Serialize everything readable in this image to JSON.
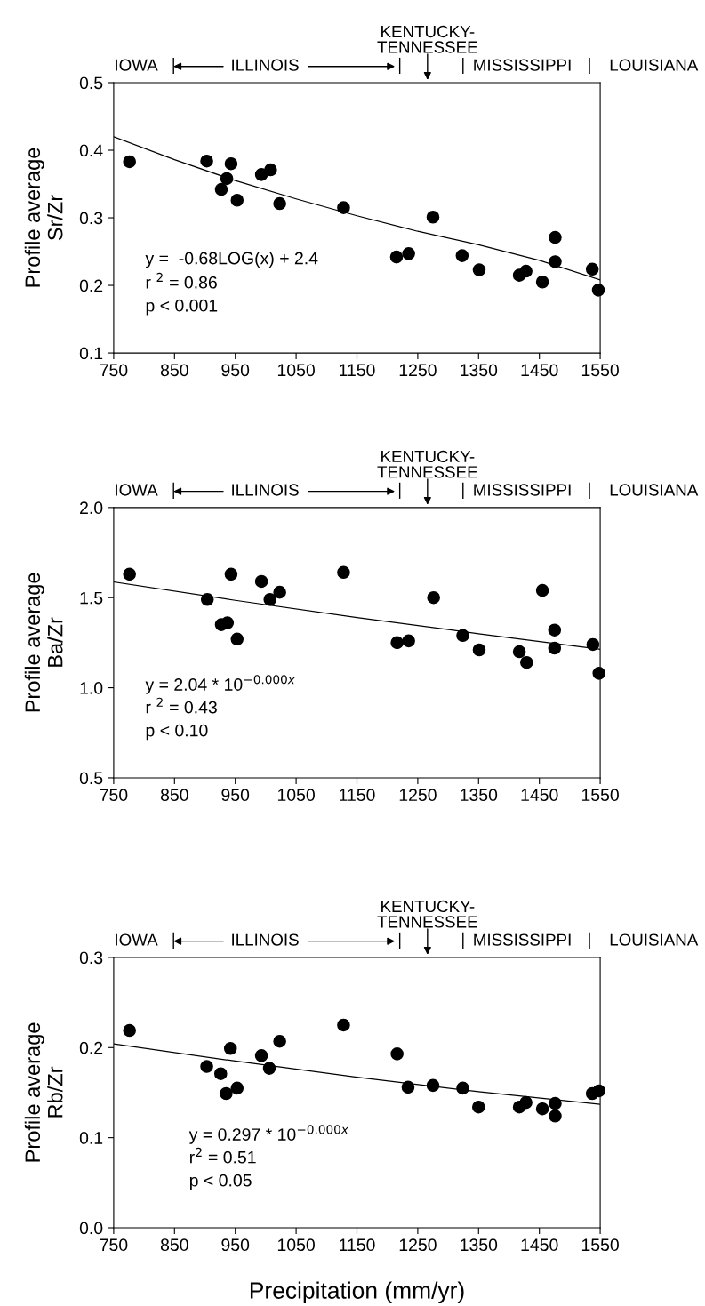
{
  "chart_data": [
    {
      "type": "scatter",
      "ylabel": "Profile average\nSr/Zr",
      "xlim": [
        750,
        1550
      ],
      "xticks": [
        750,
        850,
        950,
        1050,
        1150,
        1250,
        1350,
        1450,
        1550
      ],
      "ylim": [
        0.1,
        0.5
      ],
      "yticks": [
        0.1,
        0.2,
        0.3,
        0.4,
        0.5
      ],
      "annotations": [
        "IOWA",
        "ILLINOIS",
        "KENTUCKY-\nTENNESSEE",
        "MISSISSIPPI",
        "LOUISIANA",
        "y =  -0.68LOG(x) + 2.4",
        "r $^{2}$ = 0.86",
        "p < 0.001"
      ],
      "series": [
        {
          "marker": "circle",
          "color": "#000000",
          "x": [
            776,
            903,
            927,
            936,
            943,
            953,
            993,
            1008,
            1023,
            1128,
            1215,
            1235,
            1275,
            1323,
            1351,
            1417,
            1428,
            1455,
            1476,
            1476,
            1537,
            1547
          ],
          "values": [
            0.383,
            0.384,
            0.342,
            0.358,
            0.38,
            0.326,
            0.364,
            0.371,
            0.321,
            0.315,
            0.242,
            0.247,
            0.301,
            0.244,
            0.223,
            0.215,
            0.221,
            0.205,
            0.271,
            0.235,
            0.224,
            0.193
          ]
        },
        {
          "type": "line",
          "color": "#000000",
          "x": [
            750,
            850,
            950,
            1050,
            1150,
            1250,
            1350,
            1450,
            1550
          ],
          "values": [
            0.42,
            0.386,
            0.355,
            0.328,
            0.303,
            0.28,
            0.26,
            0.237,
            0.208
          ]
        }
      ]
    },
    {
      "type": "scatter",
      "ylabel": "Profile average\nBa/Zr",
      "xlim": [
        750,
        1550
      ],
      "xticks": [
        750,
        850,
        950,
        1050,
        1150,
        1250,
        1350,
        1450,
        1550
      ],
      "ylim": [
        0.5,
        2.0
      ],
      "yticks": [
        0.5,
        {
          "value": 1,
          "label": "1.0"
        },
        1.5,
        {
          "value": 2,
          "label": "2.0"
        }
      ],
      "annotations": [
        "IOWA",
        "ILLINOIS",
        "KENTUCKY-\nTENNESSEE",
        "MISSISSIPPI",
        "LOUISIANA",
        "y = 2.04 * 10$^{−0.000x}$",
        "r $^{2}$ = 0.43",
        "p < 0.10"
      ],
      "series": [
        {
          "marker": "circle",
          "color": "#000000",
          "x": [
            776,
            904,
            927,
            937,
            943,
            953,
            993,
            1007,
            1023,
            1128,
            1216,
            1235,
            1276,
            1324,
            1351,
            1417,
            1429,
            1455,
            1475,
            1475,
            1538,
            1548
          ],
          "values": [
            1.63,
            1.49,
            1.35,
            1.36,
            1.63,
            1.27,
            1.59,
            1.49,
            1.53,
            1.64,
            1.25,
            1.26,
            1.5,
            1.29,
            1.21,
            1.2,
            1.14,
            1.54,
            1.32,
            1.22,
            1.24,
            1.08
          ]
        },
        {
          "type": "line",
          "color": "#000000",
          "x": [
            750,
            950,
            1150,
            1350,
            1550
          ],
          "values": [
            1.587,
            1.485,
            1.39,
            1.3,
            1.214
          ]
        }
      ]
    },
    {
      "type": "scatter",
      "ylabel": "Profile average\nRb/Zr",
      "xlabel": "Precipitation (mm/yr)",
      "xlim": [
        750,
        1550
      ],
      "xticks": [
        750,
        850,
        950,
        1050,
        1150,
        1250,
        1350,
        1450,
        1550
      ],
      "ylim": [
        0.0,
        0.3
      ],
      "yticks": [
        {
          "value": 0,
          "label": "0.0"
        },
        0.1,
        0.2,
        0.3
      ],
      "annotations": [
        "IOWA",
        "ILLINOIS",
        "KENTUCKY-\nTENNESSEE",
        "MISSISSIPPI",
        "LOUISIANA",
        "y = 0.297 * 10$^{−0.000x}$",
        "r$^{2}$ = 0.51",
        "p < 0.05"
      ],
      "series": [
        {
          "marker": "circle",
          "color": "#000000",
          "x": [
            776,
            903,
            926,
            935,
            942,
            953,
            993,
            1006,
            1023,
            1128,
            1216,
            1234,
            1275,
            1324,
            1350,
            1417,
            1428,
            1455,
            1476,
            1476,
            1537,
            1548
          ],
          "values": [
            0.219,
            0.179,
            0.171,
            0.149,
            0.199,
            0.155,
            0.191,
            0.177,
            0.207,
            0.225,
            0.193,
            0.156,
            0.158,
            0.155,
            0.134,
            0.134,
            0.139,
            0.132,
            0.138,
            0.124,
            0.149,
            0.152
          ]
        },
        {
          "type": "line",
          "color": "#000000",
          "x": [
            750,
            950,
            1150,
            1350,
            1550
          ],
          "values": [
            0.204,
            0.185,
            0.167,
            0.151,
            0.137
          ]
        }
      ]
    }
  ]
}
